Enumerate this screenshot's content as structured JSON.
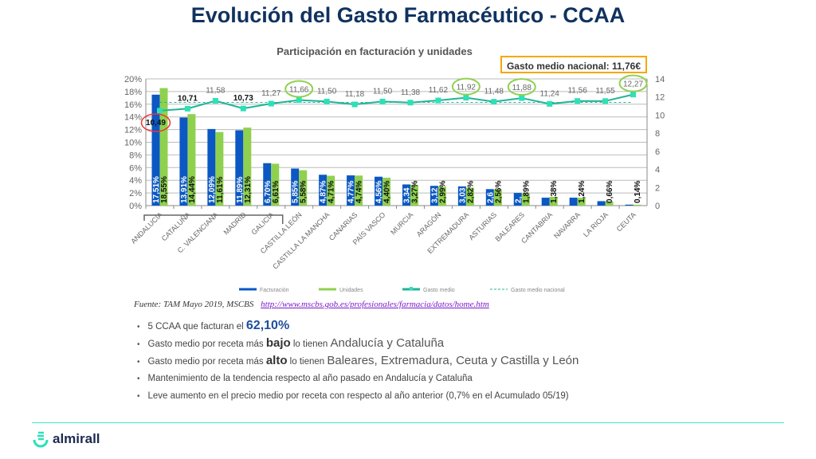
{
  "title": "Evolución del Gasto Farmacéutico - CCAA",
  "national_box": "Gasto medio nacional: 11,76€",
  "source": {
    "label": "Fuente: TAM Mayo 2019,  MSCBS",
    "link": "http://www.mscbs.gob.es/profesionales/farmacia/datos/home.htm"
  },
  "bullets": [
    {
      "a": "5 CCAA que facturan el ",
      "b": "62,10%"
    },
    {
      "a": "Gasto medio por receta más ",
      "em": "bajo",
      "c": " lo tienen ",
      "big": "Andalucía y Cataluña"
    },
    {
      "a": "Gasto medio por receta más ",
      "em": "alto",
      "c": " lo tienen ",
      "big": "Baleares, Extremadura, Ceuta y Castilla y León"
    },
    {
      "a": "Mantenimiento de la tendencia respecto al año pasado en Andalucía y Cataluña"
    },
    {
      "a": "Leve aumento en el precio medio por receta con respecto al año anterior (0,7% en el Acumulado 05/19)"
    }
  ],
  "logo": "almirall",
  "colors": {
    "facturacion": "#0b57c4",
    "unidades": "#8fd14f",
    "gasto": "#1fb597",
    "point": "#2de0b8"
  },
  "chart_data": {
    "type": "bar",
    "title": "Participación en facturación y unidades",
    "categories": [
      "ANDALUCÍA",
      "CATALUÑA",
      "C. VALENCIANA",
      "MADRID",
      "GALICIA",
      "CASTILLA LEÓN",
      "CASTILLA LA MANCHA",
      "CANARIAS",
      "PAÍS VASCO",
      "MURCIA",
      "ARAGÓN",
      "EXTREMADURA",
      "ASTURIAS",
      "BALEARES",
      "CANTABRIA",
      "NAVARRA",
      "LA RIOJA",
      "CEUTA"
    ],
    "series": [
      {
        "name": "Facturación",
        "axis": "left",
        "values": [
          17.51,
          13.91,
          12.09,
          11.89,
          6.7,
          5.85,
          4.87,
          4.77,
          4.56,
          3.34,
          3.12,
          3.03,
          2.6,
          2.0,
          1.25,
          1.25,
          0.7,
          0.15
        ],
        "labels": [
          "17,51%",
          "13,91%",
          "12,09%",
          "11,89%",
          "6,70%",
          "5,85%",
          "4,87%",
          "4,77%",
          "4,56%",
          "3,34",
          "3,12",
          "3,03",
          "2,6",
          "2,",
          "",
          "",
          "",
          ""
        ]
      },
      {
        "name": "Unidades",
        "axis": "left",
        "values": [
          18.55,
          14.44,
          11.61,
          12.31,
          6.61,
          5.58,
          4.71,
          4.74,
          4.4,
          3.27,
          2.99,
          2.82,
          2.56,
          1.89,
          1.38,
          1.24,
          0.66,
          0.14
        ],
        "labels": [
          "18,55%",
          "14,44%",
          "11,61%",
          "12,31%",
          "6,61%",
          "5,58%",
          "4,71%",
          "4,74%",
          "4,40%",
          "3,27%",
          "2,99%",
          "2,82%",
          "2,56%",
          "1,89%",
          "1,38%",
          "1,24%",
          "0,66%",
          "0,14%"
        ]
      },
      {
        "name": "Gasto medio",
        "axis": "right",
        "type": "line",
        "values": [
          10.49,
          10.71,
          11.58,
          10.73,
          11.27,
          11.66,
          11.5,
          11.18,
          11.5,
          11.38,
          11.62,
          11.92,
          11.48,
          11.88,
          11.24,
          11.56,
          11.55,
          12.27
        ],
        "labels": [
          "10,49",
          "10,71",
          "11,58",
          "10,73",
          "11,27",
          "11,66",
          "11,50",
          "11,18",
          "11,50",
          "11,38",
          "11,62",
          "11,92",
          "11,48",
          "11,88",
          "11,24",
          "11,56",
          "11,55",
          "12,27"
        ]
      },
      {
        "name": "Gasto medio nacional",
        "axis": "right",
        "type": "dashed",
        "value": 11.76
      }
    ],
    "left_axis": {
      "ylim": [
        0,
        20
      ],
      "ticks": [
        "0%",
        "2%",
        "4%",
        "6%",
        "8%",
        "10%",
        "12%",
        "14%",
        "16%",
        "18%",
        "20%"
      ]
    },
    "right_axis": {
      "ylim": [
        0,
        14
      ],
      "ticks": [
        "0",
        "2",
        "4",
        "6",
        "8",
        "10",
        "12",
        "14"
      ]
    },
    "highlight_low": [
      0
    ],
    "highlight_high": [
      5,
      11,
      13,
      17
    ],
    "grid": true,
    "legend": "bottom"
  }
}
